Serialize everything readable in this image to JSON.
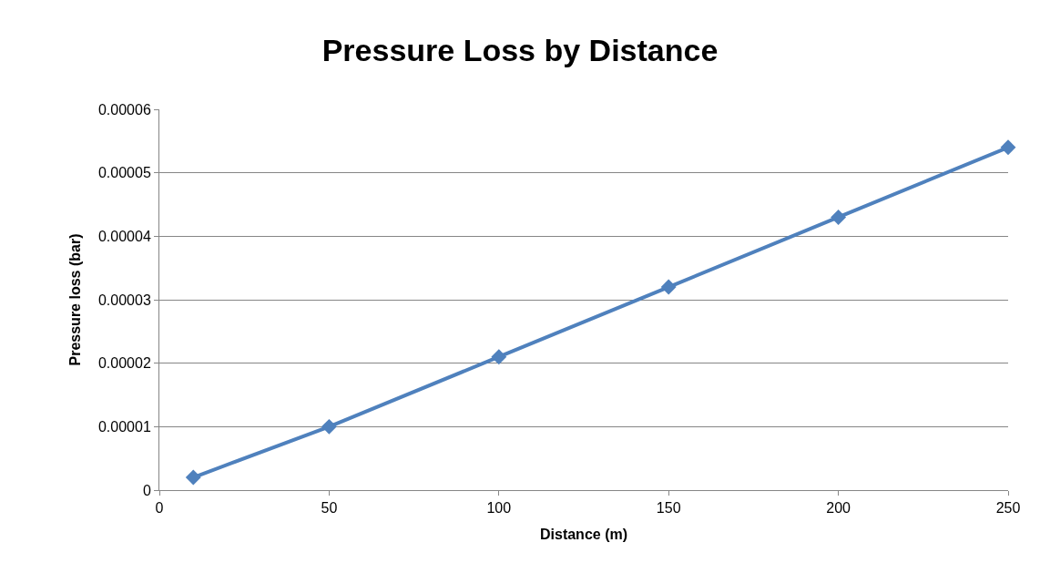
{
  "chart_data": {
    "type": "line",
    "title": "Pressure Loss by Distance",
    "xlabel": "Distance (m)",
    "ylabel": "Pressure loss (bar)",
    "x": [
      10,
      50,
      100,
      150,
      200,
      250
    ],
    "series": [
      {
        "color": "#4f81bd",
        "values": [
          2e-06,
          1e-05,
          2.1e-05,
          3.2e-05,
          4.3e-05,
          5.4e-05
        ]
      }
    ],
    "xlim": [
      0,
      250
    ],
    "xticks": [
      0,
      50,
      100,
      150,
      200,
      250
    ],
    "ylim": [
      0,
      6e-05
    ],
    "yticks": [
      0,
      {
        "value": 1e-05,
        "label": "0.00001"
      },
      {
        "value": 2e-05,
        "label": "0.00002"
      },
      {
        "value": 3e-05,
        "label": "0.00003"
      },
      {
        "value": 4e-05,
        "label": "0.00004"
      },
      {
        "value": 5e-05,
        "label": "0.00005"
      },
      {
        "value": 6e-05,
        "label": "0.00006"
      }
    ],
    "grid": "y",
    "marker": "diamond",
    "line_style": "solid"
  }
}
